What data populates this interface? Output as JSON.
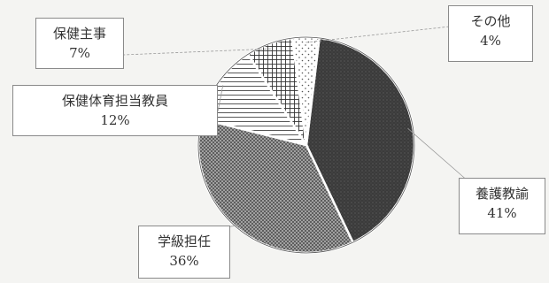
{
  "chart_data": {
    "type": "pie",
    "slices": [
      {
        "name": "養護教諭",
        "percent_label": "41%",
        "value": 41,
        "fill": "dark-stipple"
      },
      {
        "name": "学級担任",
        "percent_label": "36%",
        "value": 36,
        "fill": "dense-dots"
      },
      {
        "name": "保健体育担当教員",
        "percent_label": "12%",
        "value": 12,
        "fill": "horizontal-lines"
      },
      {
        "name": "保健主事",
        "percent_label": "7%",
        "value": 7,
        "fill": "crosshatch"
      },
      {
        "name": "その他",
        "percent_label": "4%",
        "value": 4,
        "fill": "sparse-dots"
      }
    ]
  }
}
